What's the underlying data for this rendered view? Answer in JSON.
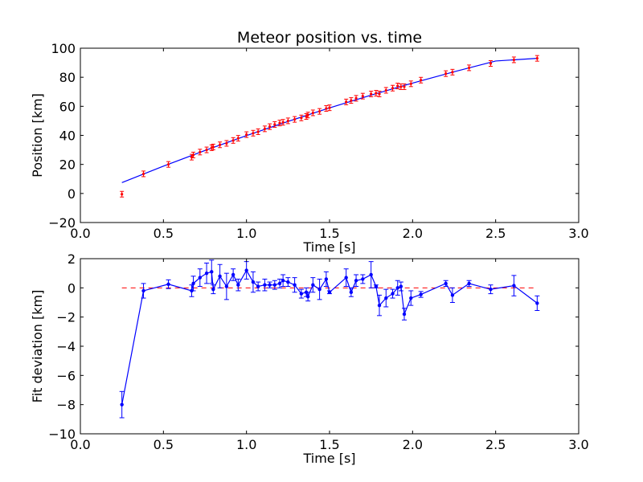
{
  "chart_data": [
    {
      "type": "scatter",
      "title": "Meteor position vs. time",
      "xlabel": "Time [s]",
      "ylabel": "Position [km]",
      "xlim": [
        0.0,
        3.0
      ],
      "ylim": [
        -20,
        100
      ],
      "xticks": [
        "0.0",
        "0.5",
        "1.0",
        "1.5",
        "2.0",
        "2.5",
        "3.0"
      ],
      "yticks": [
        "−20",
        "0",
        "20",
        "40",
        "60",
        "80",
        "100"
      ],
      "grid": false,
      "colors": {
        "points": "#ff0000",
        "fit": "#0000ff"
      },
      "series": [
        {
          "kind": "points",
          "x": [
            0.25,
            0.38,
            0.53,
            0.67,
            0.68,
            0.72,
            0.76,
            0.79,
            0.8,
            0.84,
            0.88,
            0.92,
            0.95,
            1.0,
            1.04,
            1.07,
            1.11,
            1.14,
            1.17,
            1.2,
            1.22,
            1.25,
            1.29,
            1.33,
            1.36,
            1.37,
            1.4,
            1.44,
            1.48,
            1.5,
            1.6,
            1.63,
            1.66,
            1.7,
            1.75,
            1.78,
            1.8,
            1.84,
            1.88,
            1.91,
            1.93,
            1.95,
            1.99,
            2.05,
            2.2,
            2.24,
            2.34,
            2.47,
            2.61,
            2.75
          ],
          "y": [
            -0.5,
            13.5,
            20.0,
            25.0,
            26.5,
            28.5,
            30.0,
            31.5,
            32.0,
            33.5,
            34.5,
            36.5,
            38.0,
            40.5,
            41.5,
            42.5,
            44.5,
            46.0,
            47.5,
            48.5,
            49.0,
            50.0,
            51.0,
            52.0,
            53.0,
            54.0,
            55.5,
            56.5,
            58.5,
            59.0,
            63.0,
            64.0,
            65.5,
            67.0,
            68.5,
            69.0,
            68.5,
            71.0,
            72.5,
            74.0,
            73.5,
            73.5,
            75.5,
            78.0,
            82.5,
            83.5,
            86.5,
            89.5,
            92.0,
            93.0
          ]
        },
        {
          "kind": "fit",
          "x": [
            0.25,
            0.5,
            0.75,
            1.0,
            1.25,
            1.5,
            1.75,
            2.0,
            2.25,
            2.5,
            2.75
          ],
          "y": [
            7.5,
            18.8,
            29.6,
            39.8,
            49.6,
            58.9,
            67.7,
            76.0,
            83.8,
            91.2,
            93.0
          ]
        }
      ]
    },
    {
      "type": "line",
      "title": "",
      "xlabel": "Time [s]",
      "ylabel": "Fit deviation [km]",
      "xlim": [
        0.0,
        3.0
      ],
      "ylim": [
        -10,
        2
      ],
      "xticks": [
        "0.0",
        "0.5",
        "1.0",
        "1.5",
        "2.0",
        "2.5",
        "3.0"
      ],
      "yticks": [
        "−10",
        "−8",
        "−6",
        "−4",
        "−2",
        "0",
        "2"
      ],
      "grid": false,
      "colors": {
        "line": "#0000ff",
        "reference": "#ff0000"
      },
      "reference_line": {
        "y": 0,
        "x": [
          0.25,
          2.75
        ],
        "style": "dashed"
      },
      "series": [
        {
          "x": [
            0.25,
            0.38,
            0.53,
            0.67,
            0.68,
            0.72,
            0.76,
            0.79,
            0.8,
            0.84,
            0.88,
            0.92,
            0.95,
            1.0,
            1.04,
            1.07,
            1.11,
            1.14,
            1.17,
            1.2,
            1.22,
            1.25,
            1.29,
            1.33,
            1.36,
            1.37,
            1.4,
            1.44,
            1.48,
            1.5,
            1.6,
            1.63,
            1.66,
            1.7,
            1.75,
            1.78,
            1.8,
            1.84,
            1.88,
            1.91,
            1.93,
            1.95,
            1.99,
            2.05,
            2.2,
            2.24,
            2.34,
            2.47,
            2.61,
            2.75
          ],
          "y": [
            -8.0,
            -0.2,
            0.25,
            -0.2,
            0.3,
            0.7,
            1.0,
            1.1,
            -0.1,
            0.8,
            0.1,
            0.9,
            0.2,
            1.2,
            0.4,
            0.1,
            0.2,
            0.2,
            0.2,
            0.3,
            0.5,
            0.4,
            0.2,
            -0.4,
            -0.3,
            -0.6,
            0.2,
            -0.1,
            0.6,
            -0.3,
            0.7,
            -0.3,
            0.5,
            0.6,
            0.9,
            0.1,
            -1.2,
            -0.7,
            -0.4,
            0.0,
            0.1,
            -1.8,
            -0.7,
            -0.45,
            0.3,
            -0.5,
            0.3,
            -0.1,
            0.15,
            -1.05
          ],
          "err": [
            0.9,
            0.5,
            0.3,
            0.4,
            0.5,
            0.6,
            0.7,
            0.8,
            0.3,
            0.8,
            0.9,
            0.4,
            0.4,
            0.6,
            0.7,
            0.3,
            0.4,
            0.2,
            0.3,
            0.3,
            0.4,
            0.3,
            0.5,
            0.3,
            0.3,
            0.3,
            0.5,
            0.7,
            0.5,
            0.1,
            0.6,
            0.3,
            0.4,
            0.3,
            0.9,
            0.1,
            0.7,
            0.6,
            0.3,
            0.5,
            0.3,
            0.4,
            0.5,
            0.2,
            0.2,
            0.5,
            0.2,
            0.3,
            0.7,
            0.5
          ]
        }
      ]
    }
  ]
}
